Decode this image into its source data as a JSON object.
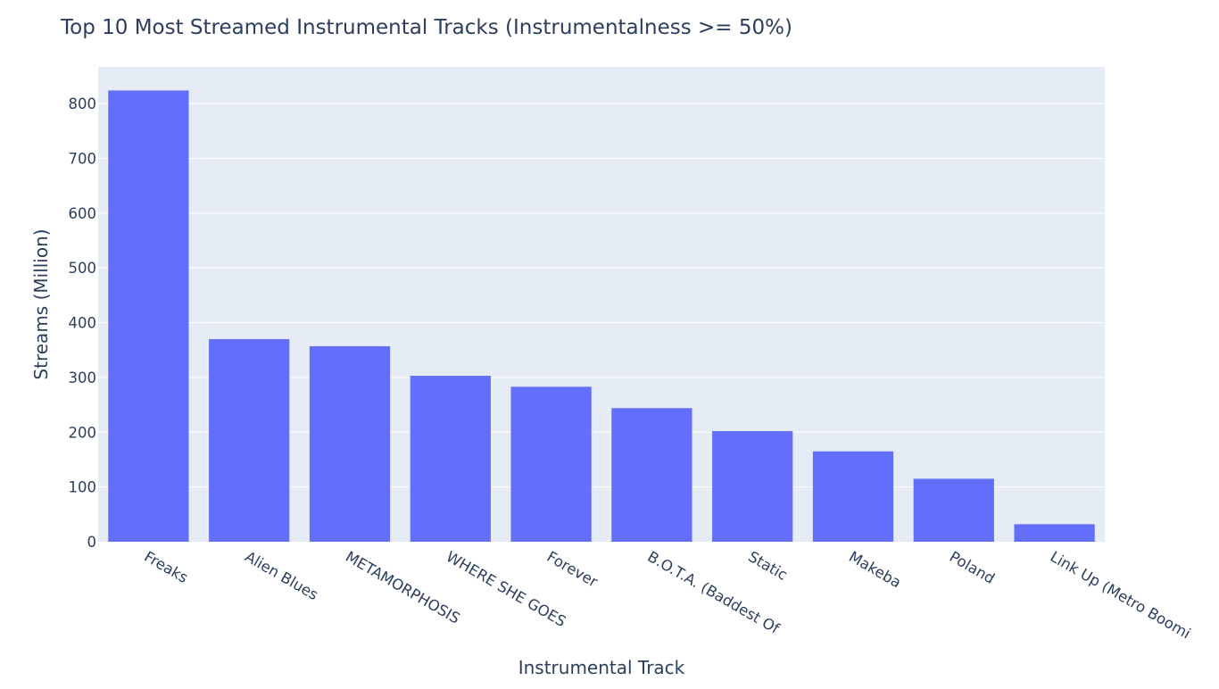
{
  "colors": {
    "plot_background": "#E5ECF6",
    "gridline": "#ffffff",
    "bar_fill": "#636EFA",
    "text": "#2a3f5f",
    "page_background": "#ffffff"
  },
  "chart_data": {
    "type": "bar",
    "title": "Top 10 Most Streamed Instrumental Tracks (Instrumentalness >= 50%)",
    "xlabel": "Instrumental Track",
    "ylabel": "Streams (Million)",
    "categories": [
      "Freaks",
      "Alien Blues",
      "METAMORPHOSIS",
      "WHERE SHE GOES",
      "Forever",
      "B.O.T.A. (Baddest Of",
      "Static",
      "Makeba",
      "Poland",
      "Link Up (Metro Boomi"
    ],
    "values": [
      824,
      370,
      357,
      303,
      283,
      244,
      202,
      165,
      115,
      32
    ],
    "ylim": [
      0,
      867
    ],
    "yticks": [
      0,
      100,
      200,
      300,
      400,
      500,
      600,
      700,
      800
    ],
    "grid": true,
    "legend": "none"
  }
}
